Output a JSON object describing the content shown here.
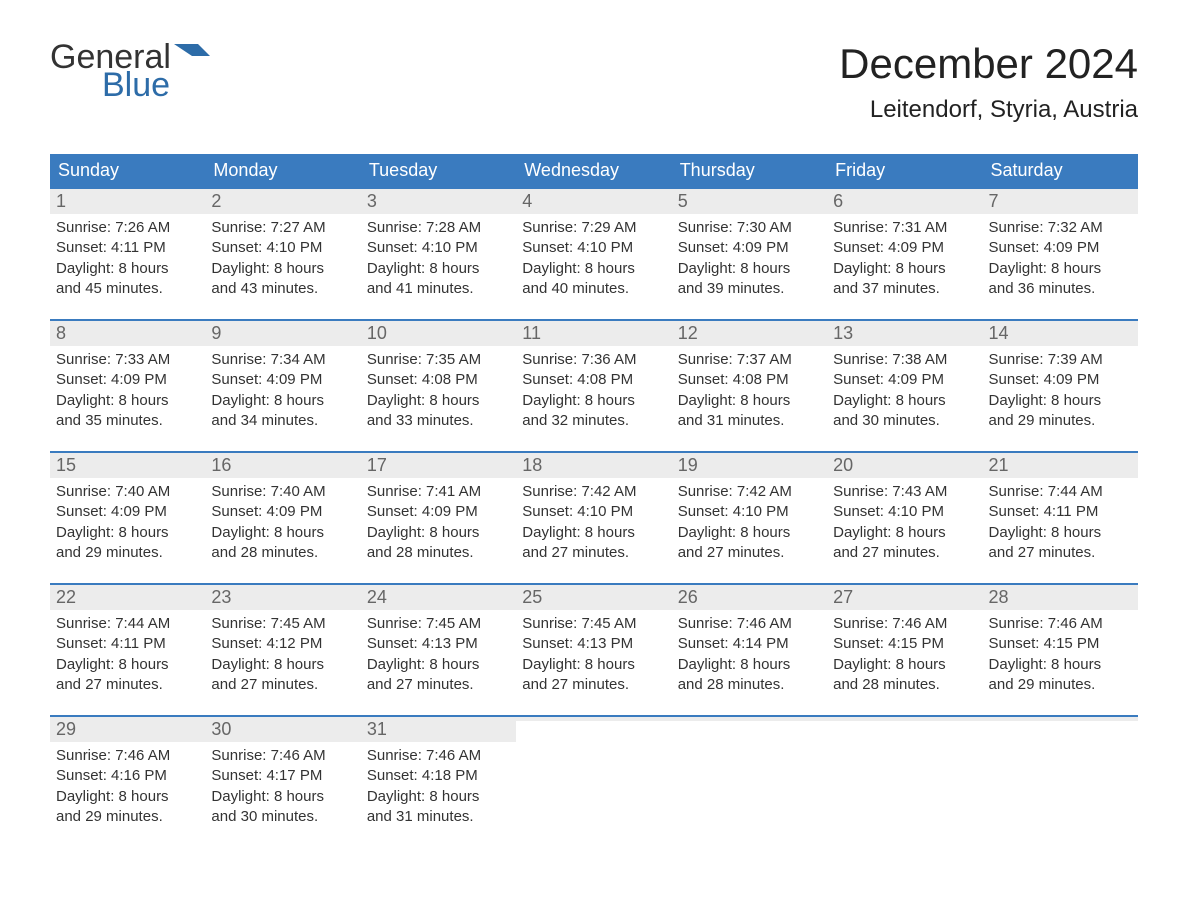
{
  "logo": {
    "word1": "General",
    "word2": "Blue"
  },
  "title": "December 2024",
  "location": "Leitendorf, Styria, Austria",
  "colors": {
    "header_bg": "#3a7bbf",
    "header_text": "#ffffff",
    "daynum_bg": "#ececec",
    "daynum_text": "#666666",
    "body_text": "#333333",
    "row_rule": "#3a7bbf",
    "logo_blue": "#2d6ca8",
    "background": "#ffffff"
  },
  "typography": {
    "title_fontsize": 42,
    "location_fontsize": 24,
    "weekday_fontsize": 18,
    "daynum_fontsize": 18,
    "content_fontsize": 15,
    "logo_fontsize": 34
  },
  "layout": {
    "columns": 7,
    "rows": 5,
    "cell_min_height": 130
  },
  "weekdays": [
    "Sunday",
    "Monday",
    "Tuesday",
    "Wednesday",
    "Thursday",
    "Friday",
    "Saturday"
  ],
  "weeks": [
    [
      {
        "day": "1",
        "sunrise": "Sunrise: 7:26 AM",
        "sunset": "Sunset: 4:11 PM",
        "daylight1": "Daylight: 8 hours",
        "daylight2": "and 45 minutes."
      },
      {
        "day": "2",
        "sunrise": "Sunrise: 7:27 AM",
        "sunset": "Sunset: 4:10 PM",
        "daylight1": "Daylight: 8 hours",
        "daylight2": "and 43 minutes."
      },
      {
        "day": "3",
        "sunrise": "Sunrise: 7:28 AM",
        "sunset": "Sunset: 4:10 PM",
        "daylight1": "Daylight: 8 hours",
        "daylight2": "and 41 minutes."
      },
      {
        "day": "4",
        "sunrise": "Sunrise: 7:29 AM",
        "sunset": "Sunset: 4:10 PM",
        "daylight1": "Daylight: 8 hours",
        "daylight2": "and 40 minutes."
      },
      {
        "day": "5",
        "sunrise": "Sunrise: 7:30 AM",
        "sunset": "Sunset: 4:09 PM",
        "daylight1": "Daylight: 8 hours",
        "daylight2": "and 39 minutes."
      },
      {
        "day": "6",
        "sunrise": "Sunrise: 7:31 AM",
        "sunset": "Sunset: 4:09 PM",
        "daylight1": "Daylight: 8 hours",
        "daylight2": "and 37 minutes."
      },
      {
        "day": "7",
        "sunrise": "Sunrise: 7:32 AM",
        "sunset": "Sunset: 4:09 PM",
        "daylight1": "Daylight: 8 hours",
        "daylight2": "and 36 minutes."
      }
    ],
    [
      {
        "day": "8",
        "sunrise": "Sunrise: 7:33 AM",
        "sunset": "Sunset: 4:09 PM",
        "daylight1": "Daylight: 8 hours",
        "daylight2": "and 35 minutes."
      },
      {
        "day": "9",
        "sunrise": "Sunrise: 7:34 AM",
        "sunset": "Sunset: 4:09 PM",
        "daylight1": "Daylight: 8 hours",
        "daylight2": "and 34 minutes."
      },
      {
        "day": "10",
        "sunrise": "Sunrise: 7:35 AM",
        "sunset": "Sunset: 4:08 PM",
        "daylight1": "Daylight: 8 hours",
        "daylight2": "and 33 minutes."
      },
      {
        "day": "11",
        "sunrise": "Sunrise: 7:36 AM",
        "sunset": "Sunset: 4:08 PM",
        "daylight1": "Daylight: 8 hours",
        "daylight2": "and 32 minutes."
      },
      {
        "day": "12",
        "sunrise": "Sunrise: 7:37 AM",
        "sunset": "Sunset: 4:08 PM",
        "daylight1": "Daylight: 8 hours",
        "daylight2": "and 31 minutes."
      },
      {
        "day": "13",
        "sunrise": "Sunrise: 7:38 AM",
        "sunset": "Sunset: 4:09 PM",
        "daylight1": "Daylight: 8 hours",
        "daylight2": "and 30 minutes."
      },
      {
        "day": "14",
        "sunrise": "Sunrise: 7:39 AM",
        "sunset": "Sunset: 4:09 PM",
        "daylight1": "Daylight: 8 hours",
        "daylight2": "and 29 minutes."
      }
    ],
    [
      {
        "day": "15",
        "sunrise": "Sunrise: 7:40 AM",
        "sunset": "Sunset: 4:09 PM",
        "daylight1": "Daylight: 8 hours",
        "daylight2": "and 29 minutes."
      },
      {
        "day": "16",
        "sunrise": "Sunrise: 7:40 AM",
        "sunset": "Sunset: 4:09 PM",
        "daylight1": "Daylight: 8 hours",
        "daylight2": "and 28 minutes."
      },
      {
        "day": "17",
        "sunrise": "Sunrise: 7:41 AM",
        "sunset": "Sunset: 4:09 PM",
        "daylight1": "Daylight: 8 hours",
        "daylight2": "and 28 minutes."
      },
      {
        "day": "18",
        "sunrise": "Sunrise: 7:42 AM",
        "sunset": "Sunset: 4:10 PM",
        "daylight1": "Daylight: 8 hours",
        "daylight2": "and 27 minutes."
      },
      {
        "day": "19",
        "sunrise": "Sunrise: 7:42 AM",
        "sunset": "Sunset: 4:10 PM",
        "daylight1": "Daylight: 8 hours",
        "daylight2": "and 27 minutes."
      },
      {
        "day": "20",
        "sunrise": "Sunrise: 7:43 AM",
        "sunset": "Sunset: 4:10 PM",
        "daylight1": "Daylight: 8 hours",
        "daylight2": "and 27 minutes."
      },
      {
        "day": "21",
        "sunrise": "Sunrise: 7:44 AM",
        "sunset": "Sunset: 4:11 PM",
        "daylight1": "Daylight: 8 hours",
        "daylight2": "and 27 minutes."
      }
    ],
    [
      {
        "day": "22",
        "sunrise": "Sunrise: 7:44 AM",
        "sunset": "Sunset: 4:11 PM",
        "daylight1": "Daylight: 8 hours",
        "daylight2": "and 27 minutes."
      },
      {
        "day": "23",
        "sunrise": "Sunrise: 7:45 AM",
        "sunset": "Sunset: 4:12 PM",
        "daylight1": "Daylight: 8 hours",
        "daylight2": "and 27 minutes."
      },
      {
        "day": "24",
        "sunrise": "Sunrise: 7:45 AM",
        "sunset": "Sunset: 4:13 PM",
        "daylight1": "Daylight: 8 hours",
        "daylight2": "and 27 minutes."
      },
      {
        "day": "25",
        "sunrise": "Sunrise: 7:45 AM",
        "sunset": "Sunset: 4:13 PM",
        "daylight1": "Daylight: 8 hours",
        "daylight2": "and 27 minutes."
      },
      {
        "day": "26",
        "sunrise": "Sunrise: 7:46 AM",
        "sunset": "Sunset: 4:14 PM",
        "daylight1": "Daylight: 8 hours",
        "daylight2": "and 28 minutes."
      },
      {
        "day": "27",
        "sunrise": "Sunrise: 7:46 AM",
        "sunset": "Sunset: 4:15 PM",
        "daylight1": "Daylight: 8 hours",
        "daylight2": "and 28 minutes."
      },
      {
        "day": "28",
        "sunrise": "Sunrise: 7:46 AM",
        "sunset": "Sunset: 4:15 PM",
        "daylight1": "Daylight: 8 hours",
        "daylight2": "and 29 minutes."
      }
    ],
    [
      {
        "day": "29",
        "sunrise": "Sunrise: 7:46 AM",
        "sunset": "Sunset: 4:16 PM",
        "daylight1": "Daylight: 8 hours",
        "daylight2": "and 29 minutes."
      },
      {
        "day": "30",
        "sunrise": "Sunrise: 7:46 AM",
        "sunset": "Sunset: 4:17 PM",
        "daylight1": "Daylight: 8 hours",
        "daylight2": "and 30 minutes."
      },
      {
        "day": "31",
        "sunrise": "Sunrise: 7:46 AM",
        "sunset": "Sunset: 4:18 PM",
        "daylight1": "Daylight: 8 hours",
        "daylight2": "and 31 minutes."
      },
      {
        "empty": true
      },
      {
        "empty": true
      },
      {
        "empty": true
      },
      {
        "empty": true
      }
    ]
  ]
}
